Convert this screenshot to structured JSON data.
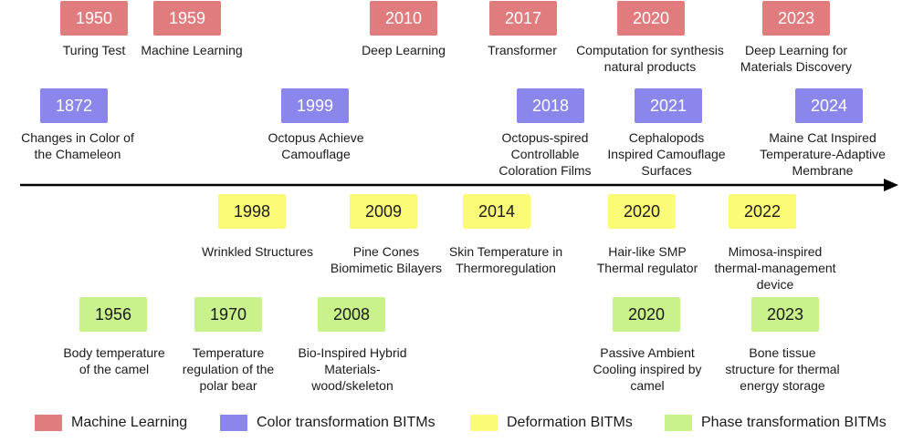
{
  "timeline": {
    "ml": [
      {
        "year": "1950",
        "label": "Turing Test"
      },
      {
        "year": "1959",
        "label": "Machine Learning"
      },
      {
        "year": "2010",
        "label": "Deep Learning"
      },
      {
        "year": "2017",
        "label": "Transformer"
      },
      {
        "year": "2020",
        "label": "Computation for synthesis\nnatural products"
      },
      {
        "year": "2023",
        "label": "Deep Learning for\nMaterials Discovery"
      }
    ],
    "color": [
      {
        "year": "1872",
        "label": "Changes in Color of\nthe Chameleon"
      },
      {
        "year": "1999",
        "label": "Octopus Achieve\nCamouflage"
      },
      {
        "year": "2018",
        "label": "Octopus-spired\nControllable\nColoration Films"
      },
      {
        "year": "2021",
        "label": "Cephalopods\nInspired Camouflage\nSurfaces"
      },
      {
        "year": "2024",
        "label": "Maine Cat Inspired\nTemperature-Adaptive\nMembrane"
      }
    ],
    "deformation": [
      {
        "year": "1998",
        "label": "Wrinkled Structures"
      },
      {
        "year": "2009",
        "label": "Pine Cones\nBiomimetic Bilayers"
      },
      {
        "year": "2014",
        "label": "Skin Temperature in\nThermoregulation"
      },
      {
        "year": "2020",
        "label": "Hair-like SMP\nThermal regulator"
      },
      {
        "year": "2022",
        "label": "Mimosa-inspired\nthermal-management\ndevice"
      }
    ],
    "phase": [
      {
        "year": "1956",
        "label": "Body temperature\nof the camel"
      },
      {
        "year": "1970",
        "label": "Temperature\nregulation of the\npolar bear"
      },
      {
        "year": "2008",
        "label": "Bio-Inspired Hybrid\nMaterials-\nwood/skeleton"
      },
      {
        "year": "2020",
        "label": "Passive Ambient\nCooling inspired by\ncamel"
      },
      {
        "year": "2023",
        "label": "Bone tissue\nstructure for thermal\nenergy storage"
      }
    ]
  },
  "legend": [
    {
      "label": "Machine Learning",
      "color": "#e07b7e"
    },
    {
      "label": "Color transformation BITMs",
      "color": "#8a86ec"
    },
    {
      "label": "Deformation BITMs",
      "color": "#fbfb78"
    },
    {
      "label": "Phase transformation BITMs",
      "color": "#c9f28c"
    }
  ]
}
